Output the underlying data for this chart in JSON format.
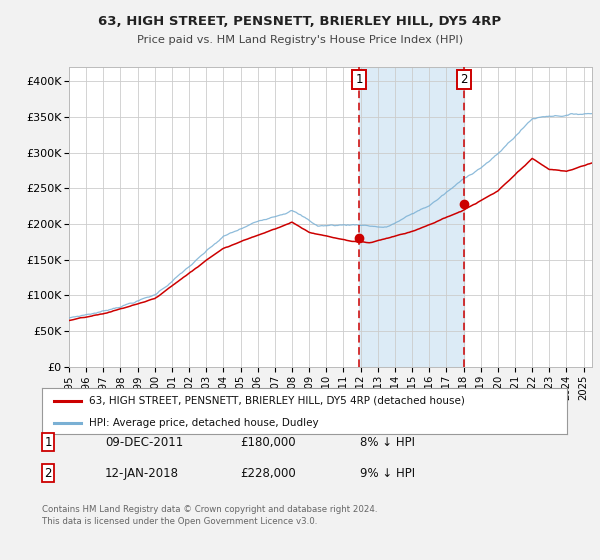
{
  "title": "63, HIGH STREET, PENSNETT, BRIERLEY HILL, DY5 4RP",
  "subtitle": "Price paid vs. HM Land Registry's House Price Index (HPI)",
  "ylim": [
    0,
    420000
  ],
  "xlim_start": 1995.0,
  "xlim_end": 2025.5,
  "yticks": [
    0,
    50000,
    100000,
    150000,
    200000,
    250000,
    300000,
    350000,
    400000
  ],
  "ytick_labels": [
    "£0",
    "£50K",
    "£100K",
    "£150K",
    "£200K",
    "£250K",
    "£300K",
    "£350K",
    "£400K"
  ],
  "line1_color": "#cc0000",
  "line2_color": "#7ab0d4",
  "transaction1_x": 2011.92,
  "transaction1_y": 180000,
  "transaction2_x": 2018.04,
  "transaction2_y": 228000,
  "vline_color": "#cc0000",
  "shade_color": "#d6e8f5",
  "legend_label1": "63, HIGH STREET, PENSNETT, BRIERLEY HILL, DY5 4RP (detached house)",
  "legend_label2": "HPI: Average price, detached house, Dudley",
  "table_row1": [
    "1",
    "09-DEC-2011",
    "£180,000",
    "8% ↓ HPI"
  ],
  "table_row2": [
    "2",
    "12-JAN-2018",
    "£228,000",
    "9% ↓ HPI"
  ],
  "footer": "Contains HM Land Registry data © Crown copyright and database right 2024.\nThis data is licensed under the Open Government Licence v3.0.",
  "background_color": "#f2f2f2",
  "plot_bg_color": "#ffffff",
  "grid_color": "#cccccc"
}
